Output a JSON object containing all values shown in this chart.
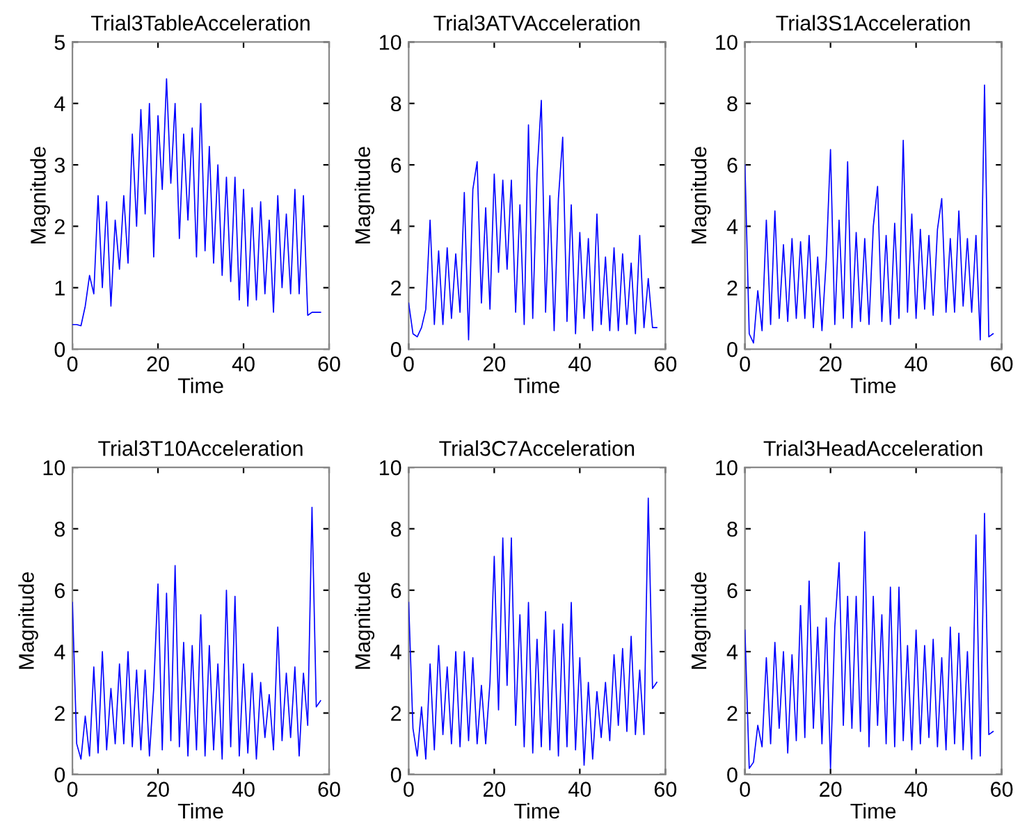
{
  "chart_data": [
    {
      "type": "line",
      "title": "Trial3TableAcceleration",
      "xlabel": "Time",
      "ylabel": "Magnitude",
      "xlim": [
        0,
        60
      ],
      "xticks": [
        0,
        20,
        40,
        60
      ],
      "ylim": [
        0,
        5
      ],
      "yticks": [
        0,
        1,
        2,
        3,
        4,
        5
      ],
      "x": [
        0,
        1,
        2,
        3,
        4,
        5,
        6,
        7,
        8,
        9,
        10,
        11,
        12,
        13,
        14,
        15,
        16,
        17,
        18,
        19,
        20,
        21,
        22,
        23,
        24,
        25,
        26,
        27,
        28,
        29,
        30,
        31,
        32,
        33,
        34,
        35,
        36,
        37,
        38,
        39,
        40,
        41,
        42,
        43,
        44,
        45,
        46,
        47,
        48,
        49,
        50,
        51,
        52,
        53,
        54,
        55,
        56,
        57,
        58
      ],
      "series": [
        {
          "color": "#0000ff",
          "values": [
            0.4,
            0.4,
            0.38,
            0.7,
            1.2,
            0.9,
            2.5,
            1.0,
            2.4,
            0.7,
            2.1,
            1.3,
            2.5,
            1.4,
            3.5,
            2.0,
            3.9,
            2.2,
            4.0,
            1.5,
            3.8,
            2.6,
            4.4,
            2.7,
            4.0,
            1.8,
            3.5,
            2.1,
            3.6,
            1.5,
            4.0,
            1.6,
            3.3,
            1.4,
            3.0,
            1.2,
            2.8,
            1.1,
            2.8,
            0.8,
            2.6,
            0.7,
            2.3,
            0.8,
            2.4,
            0.9,
            2.1,
            0.6,
            2.5,
            1.0,
            2.2,
            0.9,
            2.6,
            0.9,
            2.5,
            0.55,
            0.6,
            0.6,
            0.6
          ]
        }
      ]
    },
    {
      "type": "line",
      "title": "Trial3ATVAcceleration",
      "xlabel": "Time",
      "ylabel": "Magnitude",
      "xlim": [
        0,
        60
      ],
      "xticks": [
        0,
        20,
        40,
        60
      ],
      "ylim": [
        0,
        10
      ],
      "yticks": [
        0,
        2,
        4,
        6,
        8,
        10
      ],
      "x": [
        0,
        1,
        2,
        3,
        4,
        5,
        6,
        7,
        8,
        9,
        10,
        11,
        12,
        13,
        14,
        15,
        16,
        17,
        18,
        19,
        20,
        21,
        22,
        23,
        24,
        25,
        26,
        27,
        28,
        29,
        30,
        31,
        32,
        33,
        34,
        35,
        36,
        37,
        38,
        39,
        40,
        41,
        42,
        43,
        44,
        45,
        46,
        47,
        48,
        49,
        50,
        51,
        52,
        53,
        54,
        55,
        56,
        57,
        58
      ],
      "series": [
        {
          "color": "#0000ff",
          "values": [
            1.5,
            0.5,
            0.4,
            0.7,
            1.3,
            4.2,
            0.8,
            3.2,
            0.8,
            3.3,
            1.0,
            3.1,
            1.2,
            5.1,
            0.3,
            5.2,
            6.1,
            1.5,
            4.6,
            1.3,
            5.7,
            2.5,
            5.5,
            2.6,
            5.5,
            1.2,
            4.7,
            0.8,
            7.3,
            1.0,
            5.7,
            8.1,
            1.2,
            5.0,
            0.6,
            4.9,
            6.9,
            0.9,
            4.7,
            0.5,
            3.8,
            1.0,
            3.6,
            0.6,
            4.4,
            0.8,
            3.0,
            0.6,
            3.3,
            0.6,
            3.1,
            0.8,
            2.8,
            0.5,
            3.7,
            0.7,
            2.3,
            0.7,
            0.7
          ]
        }
      ]
    },
    {
      "type": "line",
      "title": "Trial3S1Acceleration",
      "xlabel": "Time",
      "ylabel": "Magnitude",
      "xlim": [
        0,
        60
      ],
      "xticks": [
        0,
        20,
        40,
        60
      ],
      "ylim": [
        0,
        10
      ],
      "yticks": [
        0,
        2,
        4,
        6,
        8,
        10
      ],
      "x": [
        0,
        1,
        2,
        3,
        4,
        5,
        6,
        7,
        8,
        9,
        10,
        11,
        12,
        13,
        14,
        15,
        16,
        17,
        18,
        19,
        20,
        21,
        22,
        23,
        24,
        25,
        26,
        27,
        28,
        29,
        30,
        31,
        32,
        33,
        34,
        35,
        36,
        37,
        38,
        39,
        40,
        41,
        42,
        43,
        44,
        45,
        46,
        47,
        48,
        49,
        50,
        51,
        52,
        53,
        54,
        55,
        56,
        57,
        58
      ],
      "series": [
        {
          "color": "#0000ff",
          "values": [
            6.0,
            0.5,
            0.2,
            1.9,
            0.6,
            4.2,
            0.8,
            4.5,
            1.0,
            3.4,
            0.9,
            3.6,
            1.0,
            3.5,
            1.0,
            3.7,
            0.7,
            3.0,
            0.6,
            2.9,
            6.5,
            0.8,
            4.2,
            1.0,
            6.1,
            0.7,
            3.8,
            0.9,
            3.6,
            0.8,
            4.0,
            5.3,
            0.9,
            3.7,
            0.8,
            4.1,
            1.0,
            6.8,
            1.2,
            4.4,
            1.0,
            3.9,
            1.3,
            3.7,
            1.1,
            3.9,
            4.9,
            1.2,
            3.6,
            1.2,
            4.5,
            1.4,
            3.6,
            1.2,
            3.7,
            0.3,
            8.6,
            0.4,
            0.5
          ]
        }
      ]
    },
    {
      "type": "line",
      "title": "Trial3T10Acceleration",
      "xlabel": "Time",
      "ylabel": "Magnitude",
      "xlim": [
        0,
        60
      ],
      "xticks": [
        0,
        20,
        40,
        60
      ],
      "ylim": [
        0,
        10
      ],
      "yticks": [
        0,
        2,
        4,
        6,
        8,
        10
      ],
      "x": [
        0,
        1,
        2,
        3,
        4,
        5,
        6,
        7,
        8,
        9,
        10,
        11,
        12,
        13,
        14,
        15,
        16,
        17,
        18,
        19,
        20,
        21,
        22,
        23,
        24,
        25,
        26,
        27,
        28,
        29,
        30,
        31,
        32,
        33,
        34,
        35,
        36,
        37,
        38,
        39,
        40,
        41,
        42,
        43,
        44,
        45,
        46,
        47,
        48,
        49,
        50,
        51,
        52,
        53,
        54,
        55,
        56,
        57,
        58
      ],
      "series": [
        {
          "color": "#0000ff",
          "values": [
            5.6,
            1.0,
            0.5,
            1.9,
            0.6,
            3.5,
            0.7,
            4.0,
            0.8,
            2.8,
            1.0,
            3.6,
            1.0,
            4.0,
            0.9,
            3.4,
            0.8,
            3.4,
            0.6,
            2.8,
            6.2,
            0.8,
            5.9,
            1.1,
            6.8,
            0.9,
            4.3,
            0.6,
            4.2,
            0.8,
            5.2,
            0.6,
            4.2,
            0.8,
            3.6,
            0.5,
            6.0,
            0.9,
            5.8,
            0.6,
            3.6,
            0.7,
            3.3,
            0.5,
            3.0,
            1.2,
            2.6,
            0.8,
            4.8,
            1.1,
            3.3,
            1.2,
            3.5,
            0.6,
            3.3,
            1.6,
            8.7,
            2.2,
            2.4
          ]
        }
      ]
    },
    {
      "type": "line",
      "title": "Trial3C7Acceleration",
      "xlabel": "Time",
      "ylabel": "Magnitude",
      "xlim": [
        0,
        60
      ],
      "xticks": [
        0,
        20,
        40,
        60
      ],
      "ylim": [
        0,
        10
      ],
      "yticks": [
        0,
        2,
        4,
        6,
        8,
        10
      ],
      "x": [
        0,
        1,
        2,
        3,
        4,
        5,
        6,
        7,
        8,
        9,
        10,
        11,
        12,
        13,
        14,
        15,
        16,
        17,
        18,
        19,
        20,
        21,
        22,
        23,
        24,
        25,
        26,
        27,
        28,
        29,
        30,
        31,
        32,
        33,
        34,
        35,
        36,
        37,
        38,
        39,
        40,
        41,
        42,
        43,
        44,
        45,
        46,
        47,
        48,
        49,
        50,
        51,
        52,
        53,
        54,
        55,
        56,
        57,
        58
      ],
      "series": [
        {
          "color": "#0000ff",
          "values": [
            5.6,
            1.5,
            0.6,
            2.2,
            0.5,
            3.6,
            0.8,
            4.2,
            1.3,
            3.5,
            1.0,
            4.0,
            0.9,
            4.0,
            1.1,
            3.8,
            1.0,
            2.9,
            1.0,
            3.0,
            7.1,
            2.1,
            7.7,
            2.9,
            7.7,
            1.6,
            5.2,
            0.9,
            5.6,
            0.7,
            4.4,
            0.9,
            5.3,
            0.8,
            4.7,
            0.6,
            4.9,
            0.9,
            5.6,
            0.8,
            3.8,
            0.3,
            3.0,
            0.5,
            2.7,
            1.2,
            3.0,
            1.1,
            3.9,
            1.6,
            4.1,
            1.4,
            4.5,
            1.3,
            3.4,
            1.3,
            9.0,
            2.8,
            3.0
          ]
        }
      ]
    },
    {
      "type": "line",
      "title": "Trial3HeadAcceleration",
      "xlabel": "Time",
      "ylabel": "Magnitude",
      "xlim": [
        0,
        60
      ],
      "xticks": [
        0,
        20,
        40,
        60
      ],
      "ylim": [
        0,
        10
      ],
      "yticks": [
        0,
        2,
        4,
        6,
        8,
        10
      ],
      "x": [
        0,
        1,
        2,
        3,
        4,
        5,
        6,
        7,
        8,
        9,
        10,
        11,
        12,
        13,
        14,
        15,
        16,
        17,
        18,
        19,
        20,
        21,
        22,
        23,
        24,
        25,
        26,
        27,
        28,
        29,
        30,
        31,
        32,
        33,
        34,
        35,
        36,
        37,
        38,
        39,
        40,
        41,
        42,
        43,
        44,
        45,
        46,
        47,
        48,
        49,
        50,
        51,
        52,
        53,
        54,
        55,
        56,
        57,
        58
      ],
      "series": [
        {
          "color": "#0000ff",
          "values": [
            4.7,
            0.2,
            0.4,
            1.6,
            0.9,
            3.8,
            1.0,
            4.3,
            1.5,
            4.0,
            0.7,
            3.9,
            1.1,
            5.5,
            1.2,
            6.3,
            1.5,
            4.8,
            1.0,
            5.1,
            0.2,
            4.8,
            6.9,
            1.6,
            5.8,
            1.5,
            5.8,
            1.4,
            7.9,
            0.9,
            5.8,
            1.6,
            5.2,
            1.0,
            6.1,
            0.9,
            6.1,
            1.1,
            4.2,
            0.8,
            4.7,
            1.0,
            4.2,
            1.2,
            4.4,
            0.9,
            3.8,
            0.8,
            4.8,
            1.0,
            4.6,
            0.8,
            4.0,
            0.5,
            7.8,
            0.6,
            8.5,
            1.3,
            1.4
          ]
        }
      ]
    }
  ]
}
